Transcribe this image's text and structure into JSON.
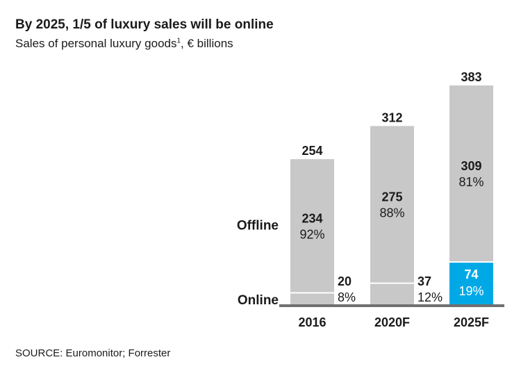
{
  "header": {
    "title": "By 2025, 1/5 of luxury sales will be online",
    "subtitle": "Sales of personal luxury goods",
    "subtitle_sup": "1",
    "subtitle_unit": ", € billions"
  },
  "footer": {
    "source": "SOURCE: Euromonitor; Forrester"
  },
  "colors": {
    "bar": "#c7c8c7",
    "online_highlight": "#00a9e6",
    "axis": "#707070",
    "text": "#1a1a1a"
  },
  "chart_data": {
    "type": "bar",
    "stacked": true,
    "categories": [
      "2016",
      "2020F",
      "2025F"
    ],
    "totals": [
      254,
      312,
      383
    ],
    "row_labels": [
      "Offline",
      "Online"
    ],
    "series": [
      {
        "name": "Offline",
        "values": [
          234,
          275,
          309
        ],
        "shares": [
          "92%",
          "88%",
          "81%"
        ]
      },
      {
        "name": "Online",
        "values": [
          20,
          37,
          74
        ],
        "shares": [
          "8%",
          "12%",
          "19%"
        ]
      }
    ],
    "highlight": {
      "series": "Online",
      "category": "2025F"
    },
    "ylim": [
      0,
      383
    ]
  }
}
